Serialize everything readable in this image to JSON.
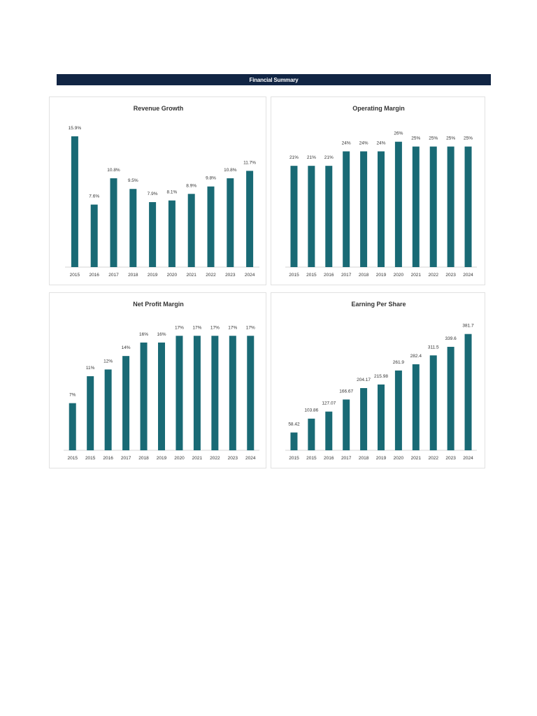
{
  "header": {
    "title": "Financial Summary"
  },
  "colors": {
    "banner": "#112544",
    "bar": "#196a75",
    "axis": "#d4d4d4"
  },
  "chart_data": [
    {
      "type": "bar",
      "title": "Revenue Growth",
      "categories": [
        "2015",
        "2016",
        "2017",
        "2018",
        "2019",
        "2020",
        "2021",
        "2022",
        "2023",
        "2024"
      ],
      "values": [
        15.9,
        7.6,
        10.8,
        9.5,
        7.9,
        8.1,
        8.9,
        9.8,
        10.8,
        11.7
      ],
      "labels": [
        "15.9%",
        "7.6%",
        "10.8%",
        "9.5%",
        "7.9%",
        "8.1%",
        "8.9%",
        "9.8%",
        "10.8%",
        "11.7%"
      ],
      "ylim": [
        0,
        17
      ]
    },
    {
      "type": "bar",
      "title": "Operating Margin",
      "categories": [
        "2015",
        "2015",
        "2016",
        "2017",
        "2018",
        "2019",
        "2020",
        "2021",
        "2022",
        "2023",
        "2024"
      ],
      "values": [
        21,
        21,
        21,
        24,
        24,
        24,
        26,
        25,
        25,
        25,
        25
      ],
      "labels": [
        "21%",
        "21%",
        "21%",
        "24%",
        "24%",
        "24%",
        "26%",
        "25%",
        "25%",
        "25%",
        "25%"
      ],
      "ylim": [
        0,
        29
      ]
    },
    {
      "type": "bar",
      "title": "Net Profit Margin",
      "categories": [
        "2015",
        "2015",
        "2016",
        "2017",
        "2018",
        "2019",
        "2020",
        "2021",
        "2022",
        "2023",
        "2024"
      ],
      "values": [
        7,
        11,
        12,
        14,
        16,
        16,
        17,
        17,
        17,
        17,
        17
      ],
      "labels": [
        "7%",
        "11%",
        "12%",
        "14%",
        "16%",
        "16%",
        "17%",
        "17%",
        "17%",
        "17%",
        "17%"
      ],
      "ylim": [
        0,
        19
      ]
    },
    {
      "type": "bar",
      "title": "Earning Per Share",
      "categories": [
        "2015",
        "2015",
        "2016",
        "2017",
        "2018",
        "2019",
        "2020",
        "2021",
        "2022",
        "2023",
        "2024"
      ],
      "values": [
        58.42,
        103.86,
        127.07,
        166.67,
        204.17,
        215.98,
        261.9,
        282.4,
        311.5,
        339.6,
        381.7
      ],
      "labels": [
        "58.42",
        "103.86",
        "127.07",
        "166.67",
        "204.17",
        "215.98",
        "261.9",
        "282.4",
        "311.5",
        "339.6",
        "381.7"
      ],
      "ylim": [
        0,
        420
      ]
    }
  ]
}
